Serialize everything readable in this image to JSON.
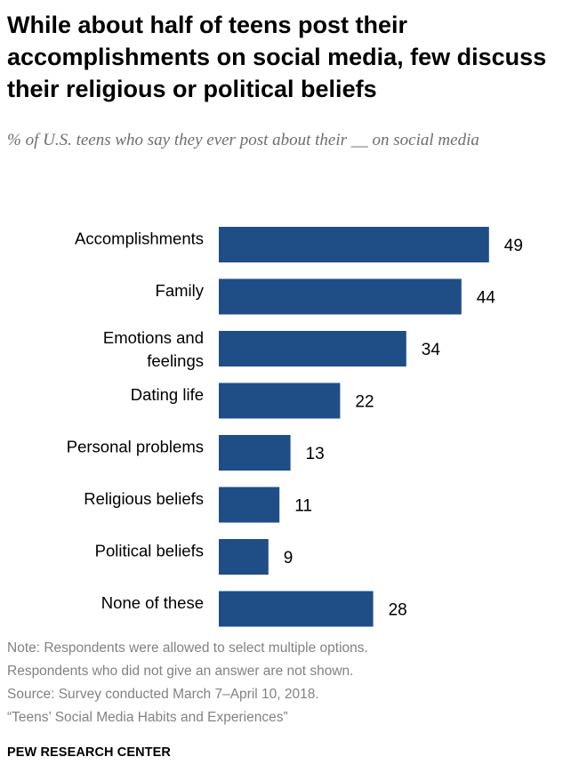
{
  "header": {
    "title": "While about half of teens post their accomplishments on social media, few discuss their religious or political beliefs",
    "subtitle": "% of U.S. teens who say they ever post about their __ on social media"
  },
  "chart_data": {
    "type": "bar",
    "orientation": "horizontal",
    "categories": [
      "Accomplishments",
      "Family",
      "Emotions and feelings",
      "Dating life",
      "Personal problems",
      "Religious beliefs",
      "Political beliefs",
      "None of these"
    ],
    "values": [
      49,
      44,
      34,
      22,
      13,
      11,
      9,
      28
    ],
    "bar_color": "#1f4e87",
    "data_labels": true,
    "grid": false,
    "legend": "none"
  },
  "footer": {
    "note_line1": "Note: Respondents were allowed to select multiple options.",
    "note_line2": "Respondents who did not give an answer are not shown.",
    "source_line1": "Source: Survey conducted March 7–April 10, 2018.",
    "source_line2": "“Teens’ Social Media Habits and Experiences”",
    "brand": "PEW RESEARCH CENTER"
  }
}
